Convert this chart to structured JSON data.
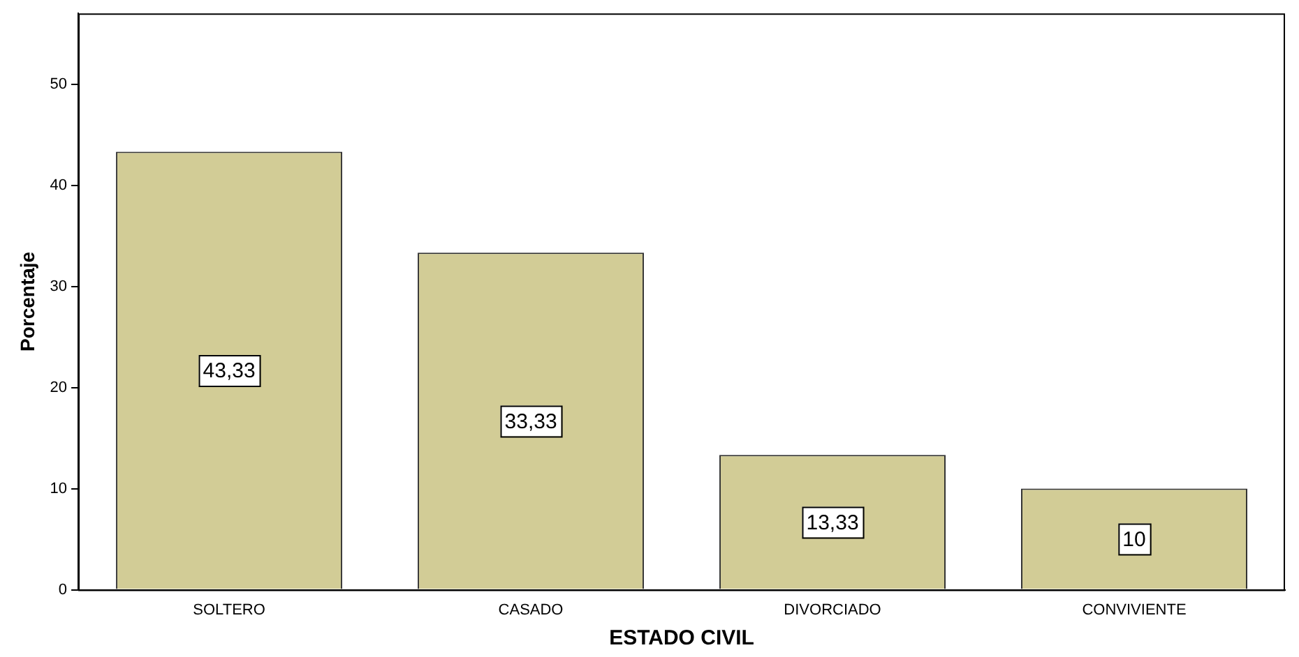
{
  "chart_data": {
    "type": "bar",
    "xlabel": "ESTADO CIVIL",
    "ylabel": "Porcentaje",
    "categories": [
      "SOLTERO",
      "CASADO",
      "DIVORCIADO",
      "CONVIVIENTE"
    ],
    "values": [
      43.33,
      33.33,
      13.33,
      10
    ],
    "value_labels": [
      "43,33",
      "33,33",
      "13,33",
      "10"
    ],
    "color": "#d2cc96",
    "ylim": [
      0,
      57
    ],
    "yticks": [
      0,
      10,
      20,
      30,
      40,
      50
    ],
    "grid": false,
    "legend": false
  }
}
